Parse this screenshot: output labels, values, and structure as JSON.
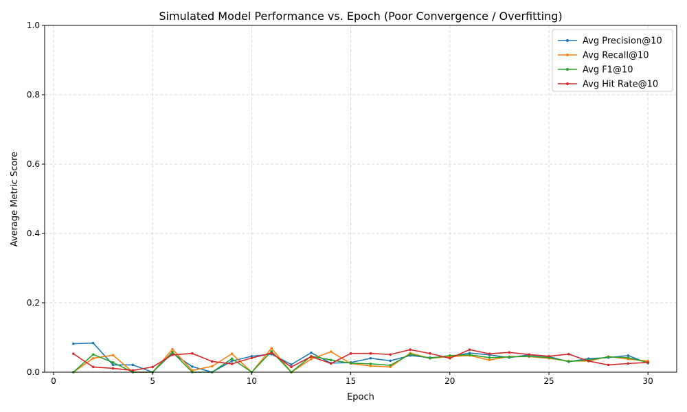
{
  "chart_data": {
    "type": "line",
    "title": "Simulated Model Performance vs. Epoch (Poor Convergence / Overfitting)",
    "xlabel": "Epoch",
    "ylabel": "Average Metric Score",
    "xlim": [
      -0.45,
      31.45
    ],
    "ylim": [
      0,
      1.0
    ],
    "xticks": [
      0,
      5,
      10,
      15,
      20,
      25,
      30
    ],
    "yticks": [
      0.0,
      0.2,
      0.4,
      0.6,
      0.8,
      1.0
    ],
    "grid": true,
    "legend_position": "top-right",
    "x": [
      1,
      2,
      3,
      4,
      5,
      6,
      7,
      8,
      9,
      10,
      11,
      12,
      13,
      14,
      15,
      16,
      17,
      18,
      19,
      20,
      21,
      22,
      23,
      24,
      25,
      26,
      27,
      28,
      29,
      30
    ],
    "series": [
      {
        "name": "Avg Precision@10",
        "color": "#1f77b4",
        "values": [
          0.082,
          0.084,
          0.021,
          0.021,
          0.0,
          0.055,
          0.016,
          0.0,
          0.032,
          0.046,
          0.052,
          0.022,
          0.056,
          0.026,
          0.028,
          0.04,
          0.033,
          0.048,
          0.042,
          0.045,
          0.055,
          0.05,
          0.042,
          0.05,
          0.045,
          0.03,
          0.039,
          0.042,
          0.048,
          0.026
        ]
      },
      {
        "name": "Avg Recall@10",
        "color": "#ff7f0e",
        "values": [
          0.0,
          0.04,
          0.049,
          0.0,
          0.0,
          0.066,
          0.005,
          0.017,
          0.053,
          0.0,
          0.069,
          0.0,
          0.038,
          0.059,
          0.025,
          0.018,
          0.015,
          0.055,
          0.04,
          0.045,
          0.048,
          0.035,
          0.045,
          0.045,
          0.04,
          0.032,
          0.032,
          0.045,
          0.038,
          0.032
        ]
      },
      {
        "name": "Avg F1@10",
        "color": "#2ca02c",
        "values": [
          0.0,
          0.051,
          0.028,
          0.0,
          0.0,
          0.058,
          0.0,
          0.0,
          0.039,
          0.0,
          0.06,
          0.0,
          0.046,
          0.035,
          0.026,
          0.024,
          0.02,
          0.052,
          0.04,
          0.048,
          0.05,
          0.042,
          0.044,
          0.046,
          0.042,
          0.031,
          0.035,
          0.044,
          0.042,
          0.028
        ]
      },
      {
        "name": "Avg Hit Rate@10",
        "color": "#d62728",
        "values": [
          0.053,
          0.015,
          0.011,
          0.005,
          0.015,
          0.05,
          0.054,
          0.031,
          0.024,
          0.041,
          0.055,
          0.015,
          0.045,
          0.025,
          0.054,
          0.054,
          0.051,
          0.065,
          0.054,
          0.04,
          0.065,
          0.053,
          0.057,
          0.051,
          0.046,
          0.052,
          0.032,
          0.021,
          0.025,
          0.028
        ]
      }
    ]
  }
}
